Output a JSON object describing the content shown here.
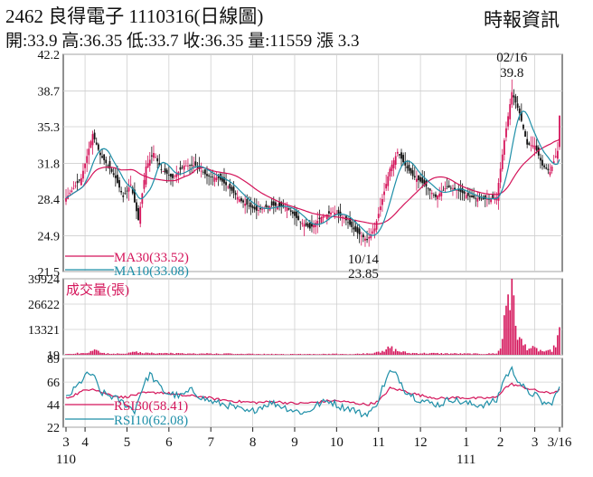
{
  "header": {
    "title": "2462  良得電子 1110316(日線圖)",
    "stats": "開:33.9 高:36.35 低:33.7 收:36.35 量:11559 漲 3.3",
    "source": "時報資訊"
  },
  "chart_data": [
    {
      "type": "candlestick",
      "panel": "price",
      "ylim": [
        21.5,
        42.2
      ],
      "y_ticks": [
        "42.2",
        "38.7",
        "35.3",
        "31.8",
        "28.4",
        "24.9",
        "21.5"
      ],
      "y_tick_values": [
        42.2,
        38.7,
        35.3,
        31.8,
        28.4,
        24.9,
        21.5
      ],
      "colors": {
        "up": "#d4145a",
        "down": "#111111",
        "ma30": "#d4145a",
        "ma10": "#1e8fa8"
      },
      "legend": [
        {
          "label": "MA30(33.52)",
          "color": "#d4145a"
        },
        {
          "label": "MA10(33.08)",
          "color": "#1e8fa8"
        }
      ],
      "annotations": [
        {
          "date": "02/16",
          "value": "39.8",
          "text": [
            "02/16",
            "39.8"
          ]
        },
        {
          "date": "10/14",
          "value": "23.85",
          "text": [
            "10/14",
            "23.85"
          ]
        }
      ],
      "key_closes": [
        [
          0,
          28.5
        ],
        [
          8,
          30.4
        ],
        [
          14,
          34.6
        ],
        [
          18,
          32.6
        ],
        [
          22,
          31.6
        ],
        [
          26,
          30.4
        ],
        [
          30,
          28.6
        ],
        [
          34,
          29.8
        ],
        [
          38,
          26.4
        ],
        [
          42,
          31.5
        ],
        [
          46,
          32.8
        ],
        [
          50,
          31.2
        ],
        [
          56,
          30.4
        ],
        [
          62,
          31.6
        ],
        [
          68,
          31.6
        ],
        [
          74,
          30.6
        ],
        [
          80,
          30.4
        ],
        [
          86,
          29.4
        ],
        [
          92,
          28.2
        ],
        [
          100,
          27.3
        ],
        [
          108,
          27.8
        ],
        [
          116,
          27.6
        ],
        [
          122,
          26.4
        ],
        [
          128,
          25.6
        ],
        [
          134,
          26.7
        ],
        [
          140,
          27.2
        ],
        [
          146,
          26.6
        ],
        [
          152,
          25.3
        ],
        [
          158,
          24.5
        ],
        [
          162,
          25.6
        ],
        [
          166,
          28.4
        ],
        [
          170,
          31.3
        ],
        [
          174,
          32.9
        ],
        [
          178,
          31.6
        ],
        [
          182,
          30.6
        ],
        [
          188,
          29.8
        ],
        [
          194,
          28.6
        ],
        [
          200,
          29.6
        ],
        [
          206,
          29.2
        ],
        [
          212,
          28.6
        ],
        [
          218,
          28.4
        ],
        [
          222,
          28.4
        ],
        [
          226,
          28.6
        ],
        [
          230,
          34.0
        ],
        [
          234,
          38.6
        ],
        [
          238,
          36.6
        ],
        [
          242,
          33.6
        ],
        [
          246,
          33.5
        ],
        [
          250,
          31.6
        ],
        [
          254,
          31.0
        ],
        [
          258,
          33.0
        ],
        [
          259,
          36.35
        ]
      ]
    },
    {
      "type": "bar",
      "panel": "volume",
      "label": "成交量(張)",
      "ylim": [
        0,
        39924
      ],
      "y_ticks": [
        "39924",
        "26622",
        "13321",
        "19"
      ],
      "y_tick_values": [
        39924,
        26622,
        13321,
        19
      ],
      "key_volumes": [
        [
          0,
          600
        ],
        [
          10,
          900
        ],
        [
          14,
          2500
        ],
        [
          16,
          1800
        ],
        [
          20,
          700
        ],
        [
          30,
          600
        ],
        [
          35,
          1600
        ],
        [
          40,
          900
        ],
        [
          60,
          700
        ],
        [
          80,
          600
        ],
        [
          100,
          400
        ],
        [
          120,
          350
        ],
        [
          140,
          500
        ],
        [
          150,
          300
        ],
        [
          160,
          800
        ],
        [
          166,
          1500
        ],
        [
          170,
          3800
        ],
        [
          174,
          2000
        ],
        [
          180,
          900
        ],
        [
          200,
          700
        ],
        [
          220,
          500
        ],
        [
          226,
          800
        ],
        [
          228,
          3000
        ],
        [
          229,
          9000
        ],
        [
          230,
          22000
        ],
        [
          231,
          28000
        ],
        [
          232,
          39924
        ],
        [
          233,
          30000
        ],
        [
          234,
          35000
        ],
        [
          235,
          26000
        ],
        [
          236,
          18000
        ],
        [
          237,
          12000
        ],
        [
          238,
          8000
        ],
        [
          240,
          5000
        ],
        [
          244,
          3500
        ],
        [
          248,
          2500
        ],
        [
          252,
          1500
        ],
        [
          254,
          2000
        ],
        [
          256,
          3500
        ],
        [
          257,
          6000
        ],
        [
          258,
          9000
        ],
        [
          259,
          11559
        ]
      ]
    },
    {
      "type": "line",
      "panel": "rsi",
      "ylim": [
        22,
        89
      ],
      "y_ticks": [
        "89",
        "66",
        "44",
        "22"
      ],
      "y_tick_values": [
        89,
        66,
        44,
        22
      ],
      "legend": [
        {
          "label": "RSI30(58.41)",
          "color": "#d4145a"
        },
        {
          "label": "RSI10(62.08)",
          "color": "#1e8fa8"
        }
      ],
      "key_rsi10": [
        [
          0,
          50
        ],
        [
          6,
          62
        ],
        [
          10,
          72
        ],
        [
          14,
          74
        ],
        [
          18,
          56
        ],
        [
          24,
          52
        ],
        [
          30,
          46
        ],
        [
          36,
          38
        ],
        [
          40,
          60
        ],
        [
          44,
          74
        ],
        [
          48,
          64
        ],
        [
          52,
          56
        ],
        [
          60,
          52
        ],
        [
          66,
          58
        ],
        [
          72,
          50
        ],
        [
          78,
          46
        ],
        [
          84,
          44
        ],
        [
          90,
          40
        ],
        [
          96,
          36
        ],
        [
          102,
          42
        ],
        [
          108,
          46
        ],
        [
          114,
          42
        ],
        [
          120,
          38
        ],
        [
          126,
          36
        ],
        [
          132,
          44
        ],
        [
          138,
          48
        ],
        [
          144,
          42
        ],
        [
          150,
          40
        ],
        [
          156,
          34
        ],
        [
          162,
          40
        ],
        [
          166,
          60
        ],
        [
          170,
          76
        ],
        [
          174,
          72
        ],
        [
          178,
          58
        ],
        [
          184,
          50
        ],
        [
          190,
          46
        ],
        [
          196,
          44
        ],
        [
          202,
          50
        ],
        [
          208,
          46
        ],
        [
          214,
          44
        ],
        [
          220,
          44
        ],
        [
          226,
          48
        ],
        [
          230,
          70
        ],
        [
          234,
          78
        ],
        [
          238,
          66
        ],
        [
          242,
          56
        ],
        [
          246,
          54
        ],
        [
          250,
          46
        ],
        [
          254,
          44
        ],
        [
          258,
          56
        ],
        [
          259,
          62.08
        ]
      ],
      "key_rsi30": [
        [
          0,
          50
        ],
        [
          10,
          58
        ],
        [
          14,
          60
        ],
        [
          20,
          55
        ],
        [
          30,
          51
        ],
        [
          40,
          55
        ],
        [
          50,
          56
        ],
        [
          60,
          53
        ],
        [
          70,
          52
        ],
        [
          80,
          49
        ],
        [
          90,
          47
        ],
        [
          100,
          46
        ],
        [
          110,
          47
        ],
        [
          120,
          45
        ],
        [
          130,
          46
        ],
        [
          140,
          48
        ],
        [
          150,
          46
        ],
        [
          158,
          44
        ],
        [
          164,
          47
        ],
        [
          170,
          60
        ],
        [
          176,
          58
        ],
        [
          186,
          53
        ],
        [
          196,
          50
        ],
        [
          206,
          51
        ],
        [
          216,
          50
        ],
        [
          226,
          51
        ],
        [
          230,
          60
        ],
        [
          234,
          64
        ],
        [
          240,
          61
        ],
        [
          248,
          57
        ],
        [
          254,
          55
        ],
        [
          259,
          58.41
        ]
      ]
    }
  ],
  "x_axis": {
    "months": [
      "3",
      "4",
      "5",
      "6",
      "7",
      "8",
      "9",
      "10",
      "11",
      "12",
      "1",
      "2",
      "3",
      "3/16"
    ],
    "year_labels": [
      "110",
      "111"
    ],
    "month_index": [
      0,
      10,
      32,
      54,
      76,
      98,
      120,
      142,
      164,
      186,
      210,
      228,
      246,
      259
    ],
    "year_index": [
      0,
      210
    ]
  }
}
